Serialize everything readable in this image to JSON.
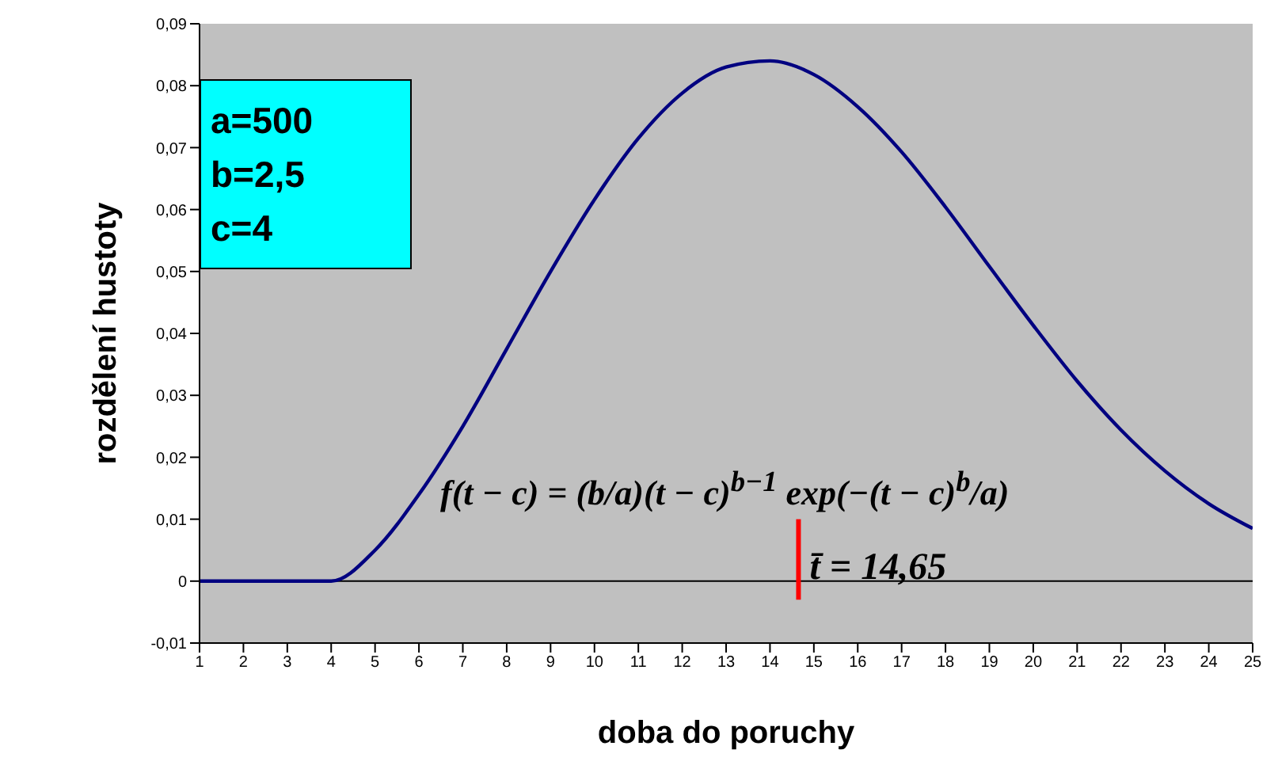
{
  "chart_data": {
    "type": "line",
    "xlabel": "doba do poruchy",
    "ylabel": "rozdělení hustoty",
    "x": [
      1,
      2,
      3,
      4,
      5,
      6,
      7,
      8,
      9,
      10,
      11,
      12,
      13,
      14,
      15,
      16,
      17,
      18,
      19,
      20,
      21,
      22,
      23,
      24,
      25
    ],
    "series": [
      {
        "color": "#000080",
        "values": [
          0,
          0,
          0,
          0,
          0.005,
          0.014,
          0.025,
          0.0375,
          0.05,
          0.0616,
          0.0715,
          0.0788,
          0.083,
          0.084,
          0.0818,
          0.0766,
          0.0693,
          0.0604,
          0.0508,
          0.0413,
          0.0323,
          0.0244,
          0.0178,
          0.0125,
          0.0085
        ]
      }
    ],
    "xlim": [
      1,
      25
    ],
    "xticks": [
      1,
      2,
      3,
      4,
      5,
      6,
      7,
      8,
      9,
      10,
      11,
      12,
      13,
      14,
      15,
      16,
      17,
      18,
      19,
      20,
      21,
      22,
      23,
      24,
      25
    ],
    "ylim": [
      -0.01,
      0.09
    ],
    "yticks": [
      {
        "value": -0.01,
        "label": "-0,01"
      },
      0,
      {
        "value": 0.01,
        "label": "0,01"
      },
      {
        "value": 0.02,
        "label": "0,02"
      },
      {
        "value": 0.03,
        "label": "0,03"
      },
      {
        "value": 0.04,
        "label": "0,04"
      },
      {
        "value": 0.05,
        "label": "0,05"
      },
      {
        "value": 0.06,
        "label": "0,06"
      },
      {
        "value": 0.07,
        "label": "0,07"
      },
      {
        "value": 0.08,
        "label": "0,08"
      },
      {
        "value": 0.09,
        "label": "0,09"
      }
    ],
    "ref_lines": [
      {
        "axis": "x",
        "value": 14.65,
        "label": "t̄ = 14,65",
        "color": "#ff0000"
      }
    ],
    "annotations": [
      "a=500",
      "b=2,5",
      "c=4",
      "f(t − c) = (b/a)(t − c)$^{b−1}$ exp(−(t − c)$^{b}$/a)"
    ],
    "legend": false,
    "marker": "none",
    "line_style": "solid"
  }
}
